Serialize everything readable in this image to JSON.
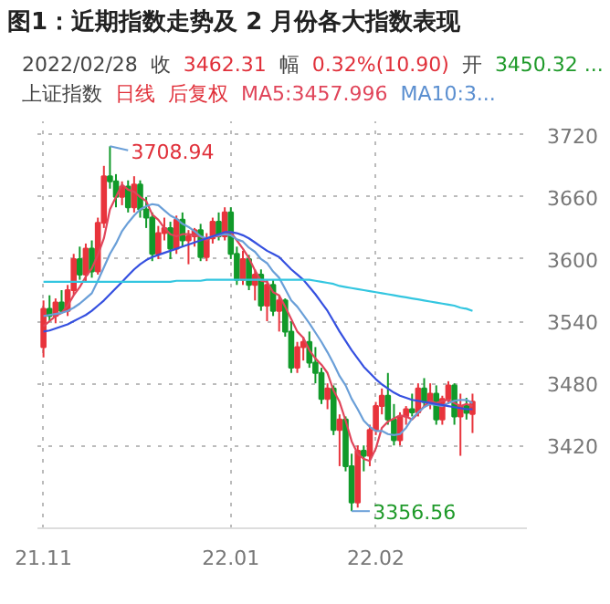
{
  "chart_data": {
    "type": "candlestick",
    "title": "图1：近期指数走势及 2 月份各大指数表现",
    "annotations": [
      "2022/02/28",
      "收",
      "3462.31",
      "幅",
      "0.32%(10.90)",
      "开",
      "3450.32 ...",
      "上证指数",
      "日线",
      "后复权",
      "MA5:3457.996",
      "MA10:3...",
      "3708.94",
      "3356.56"
    ],
    "categories": [
      "21.11",
      null,
      null,
      null,
      null,
      null,
      null,
      null,
      null,
      null,
      null,
      null,
      null,
      null,
      null,
      null,
      null,
      null,
      null,
      null,
      null,
      null,
      null,
      null,
      null,
      null,
      null,
      null,
      null,
      null,
      null,
      "22.01",
      null,
      null,
      null,
      null,
      null,
      null,
      null,
      null,
      null,
      null,
      null,
      null,
      null,
      null,
      null,
      null,
      null,
      null,
      null,
      null,
      null,
      null,
      null,
      "22.02",
      null,
      null,
      null,
      null,
      null,
      null,
      null,
      null,
      null,
      null,
      null,
      null,
      null,
      null,
      null,
      null
    ],
    "ohlc": [
      [
        3515,
        3560,
        3505,
        3552
      ],
      [
        3552,
        3565,
        3540,
        3545
      ],
      [
        3545,
        3562,
        3538,
        3558
      ],
      [
        3558,
        3570,
        3548,
        3550
      ],
      [
        3550,
        3575,
        3545,
        3570
      ],
      [
        3570,
        3605,
        3565,
        3600
      ],
      [
        3600,
        3612,
        3580,
        3585
      ],
      [
        3585,
        3615,
        3578,
        3610
      ],
      [
        3610,
        3618,
        3582,
        3588
      ],
      [
        3588,
        3640,
        3585,
        3635
      ],
      [
        3635,
        3690,
        3630,
        3680
      ],
      [
        3680,
        3708.94,
        3668,
        3675
      ],
      [
        3675,
        3682,
        3650,
        3660
      ],
      [
        3660,
        3675,
        3652,
        3670
      ],
      [
        3670,
        3676,
        3645,
        3650
      ],
      [
        3650,
        3680,
        3645,
        3672
      ],
      [
        3672,
        3676,
        3640,
        3648
      ],
      [
        3648,
        3660,
        3630,
        3640
      ],
      [
        3640,
        3645,
        3598,
        3605
      ],
      [
        3605,
        3632,
        3600,
        3625
      ],
      [
        3625,
        3640,
        3618,
        3630
      ],
      [
        3630,
        3636,
        3600,
        3610
      ],
      [
        3610,
        3642,
        3605,
        3638
      ],
      [
        3638,
        3645,
        3612,
        3618
      ],
      [
        3618,
        3628,
        3595,
        3622
      ],
      [
        3622,
        3630,
        3612,
        3628
      ],
      [
        3628,
        3634,
        3598,
        3602
      ],
      [
        3602,
        3625,
        3598,
        3620
      ],
      [
        3620,
        3640,
        3615,
        3636
      ],
      [
        3636,
        3645,
        3618,
        3622
      ],
      [
        3622,
        3650,
        3618,
        3645
      ],
      [
        3645,
        3650,
        3600,
        3605
      ],
      [
        3605,
        3612,
        3575,
        3580
      ],
      [
        3580,
        3608,
        3575,
        3600
      ],
      [
        3600,
        3604,
        3570,
        3575
      ],
      [
        3575,
        3590,
        3560,
        3585
      ],
      [
        3585,
        3590,
        3550,
        3555
      ],
      [
        3555,
        3580,
        3540,
        3575
      ],
      [
        3575,
        3580,
        3545,
        3550
      ],
      [
        3550,
        3565,
        3530,
        3560
      ],
      [
        3560,
        3562,
        3525,
        3530
      ],
      [
        3530,
        3540,
        3490,
        3495
      ],
      [
        3495,
        3520,
        3490,
        3515
      ],
      [
        3515,
        3525,
        3502,
        3520
      ],
      [
        3520,
        3530,
        3495,
        3500
      ],
      [
        3500,
        3515,
        3480,
        3490
      ],
      [
        3490,
        3495,
        3460,
        3465
      ],
      [
        3465,
        3480,
        3455,
        3475
      ],
      [
        3475,
        3478,
        3430,
        3435
      ],
      [
        3435,
        3450,
        3400,
        3445
      ],
      [
        3445,
        3448,
        3395,
        3400
      ],
      [
        3400,
        3412,
        3356.56,
        3365
      ],
      [
        3365,
        3420,
        3360,
        3415
      ],
      [
        3415,
        3420,
        3395,
        3410
      ],
      [
        3410,
        3440,
        3400,
        3435
      ],
      [
        3435,
        3462,
        3430,
        3458
      ],
      [
        3458,
        3475,
        3450,
        3468
      ],
      [
        3468,
        3490,
        3440,
        3445
      ],
      [
        3445,
        3460,
        3420,
        3425
      ],
      [
        3425,
        3452,
        3420,
        3448
      ],
      [
        3448,
        3458,
        3440,
        3455
      ],
      [
        3455,
        3470,
        3448,
        3452
      ],
      [
        3452,
        3480,
        3448,
        3475
      ],
      [
        3475,
        3485,
        3458,
        3462
      ],
      [
        3462,
        3480,
        3455,
        3470
      ],
      [
        3470,
        3478,
        3440,
        3445
      ],
      [
        3445,
        3468,
        3440,
        3465
      ],
      [
        3465,
        3482,
        3460,
        3478
      ],
      [
        3478,
        3480,
        3440,
        3448
      ],
      [
        3448,
        3470,
        3410,
        3458
      ],
      [
        3458,
        3466,
        3445,
        3451.41
      ],
      [
        3450.32,
        3470,
        3432,
        3462.31
      ]
    ],
    "series": [
      {
        "type": "line",
        "color": "#e0455a",
        "values": [
          3535,
          3540,
          3545,
          3548,
          3555,
          3565,
          3573,
          3583,
          3591,
          3604,
          3620,
          3648,
          3660,
          3672,
          3667,
          3665,
          3660,
          3656,
          3643,
          3638,
          3630,
          3624,
          3622,
          3624,
          3624,
          3623,
          3622,
          3618,
          3622,
          3622,
          3625,
          3626,
          3618,
          3610,
          3601,
          3589,
          3579,
          3578,
          3568,
          3565,
          3554,
          3542,
          3530,
          3524,
          3512,
          3504,
          3498,
          3490,
          3473,
          3462,
          3444,
          3424,
          3412,
          3407,
          3405,
          3417,
          3437,
          3443,
          3446,
          3449,
          3448,
          3445,
          3451,
          3458,
          3463,
          3461,
          3463,
          3464,
          3461,
          3458,
          3460,
          3458
        ]
      },
      {
        "type": "line",
        "color": "#6a9fd8",
        "values": [
          3545,
          3546,
          3547,
          3548,
          3550,
          3553,
          3557,
          3562,
          3567,
          3579,
          3592,
          3605,
          3615,
          3627,
          3635,
          3642,
          3648,
          3651,
          3653,
          3652,
          3647,
          3642,
          3639,
          3634,
          3631,
          3627,
          3622,
          3620,
          3622,
          3623,
          3624,
          3623,
          3619,
          3617,
          3611,
          3607,
          3600,
          3596,
          3588,
          3582,
          3571,
          3560,
          3554,
          3546,
          3538,
          3529,
          3520,
          3510,
          3499,
          3487,
          3478,
          3465,
          3455,
          3444,
          3438,
          3434,
          3434,
          3431,
          3430,
          3431,
          3437,
          3446,
          3452,
          3457,
          3460,
          3459,
          3458,
          3461,
          3463,
          3464,
          3464,
          3461
        ]
      },
      {
        "type": "line",
        "color": "#3550e0",
        "values": [
          3530,
          3531,
          3533,
          3535,
          3537,
          3540,
          3543,
          3546,
          3550,
          3555,
          3560,
          3566,
          3572,
          3578,
          3584,
          3590,
          3595,
          3599,
          3602,
          3604,
          3606,
          3608,
          3610,
          3612,
          3614,
          3616,
          3618,
          3620,
          3622,
          3624,
          3626,
          3626,
          3625,
          3623,
          3620,
          3616,
          3612,
          3608,
          3605,
          3602,
          3596,
          3590,
          3585,
          3580,
          3573,
          3566,
          3558,
          3550,
          3540,
          3530,
          3521,
          3512,
          3504,
          3496,
          3490,
          3484,
          3479,
          3475,
          3471,
          3468,
          3466,
          3464,
          3463,
          3462,
          3461,
          3460,
          3459,
          3458,
          3457,
          3456,
          3455,
          3455
        ]
      },
      {
        "type": "line",
        "color": "#33c6e0",
        "values": [
          3578,
          3578,
          3578,
          3578,
          3578,
          3578,
          3578,
          3578,
          3578,
          3578,
          3578,
          3578,
          3578,
          3578,
          3578,
          3578,
          3578,
          3578,
          3578,
          3578,
          3578,
          3578,
          3579,
          3579,
          3579,
          3579,
          3579,
          3580,
          3580,
          3580,
          3580,
          3580,
          3580,
          3580,
          3580,
          3580,
          3580,
          3580,
          3580,
          3580,
          3580,
          3580,
          3580,
          3580,
          3580,
          3579,
          3578,
          3577,
          3576,
          3574,
          3573,
          3572,
          3571,
          3570,
          3569,
          3568,
          3567,
          3566,
          3565,
          3564,
          3563,
          3562,
          3561,
          3560,
          3559,
          3558,
          3557,
          3556,
          3555,
          3553,
          3552,
          3550
        ]
      }
    ],
    "ylim": [
      3340,
      3733
    ],
    "yticks": [
      3420,
      3480,
      3540,
      3600,
      3660,
      3720
    ],
    "grid": true
  }
}
